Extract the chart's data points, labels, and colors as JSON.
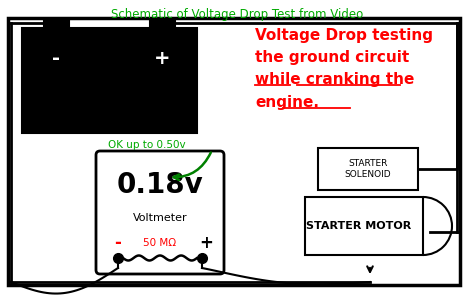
{
  "title": "Schematic of Voltage Drop Test from Video",
  "title_color": "#00aa00",
  "bg_color": "#ffffff",
  "border_color": "#000000",
  "battery_color": "#000000",
  "voltmeter_display": "0.18v",
  "voltmeter_label": "Voltmeter",
  "voltmeter_ok_text": "OK up to 0.50v",
  "voltmeter_ok_color": "#00aa00",
  "voltmeter_probe_text": "50 MΩ",
  "voltmeter_probe_color": "#ff0000",
  "red_text_line1": "Voltage Drop testing",
  "red_text_line2": "the ground circuit",
  "red_text_line3": "while cranking the",
  "red_text_line4": "engine.",
  "red_text_color": "#ff0000",
  "starter_solenoid_label": "STARTER\nSOLENOID",
  "starter_motor_label": "STARTER MOTOR",
  "minus_sign": "-",
  "plus_sign": "+"
}
